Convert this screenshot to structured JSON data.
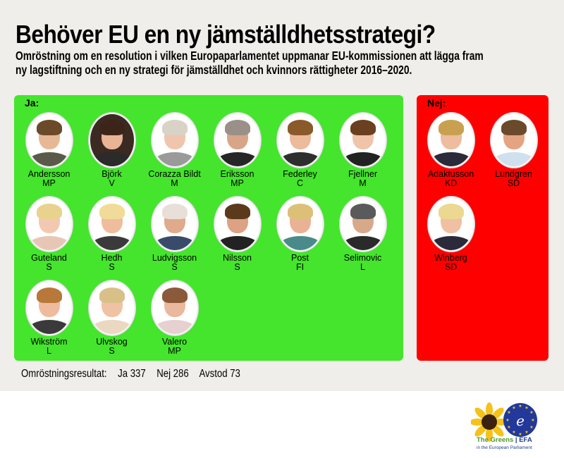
{
  "header": {
    "title": "Behöver EU en ny jämställdhetsstrategi?",
    "subtitle_line1": "Omröstning om en resolution i vilken Europaparlamentet uppmanar EU-kommissionen att lägga fram",
    "subtitle_line2": "ny lagstiftning och en ny strategi för jämställdhet och kvinnors rättigheter 2016–2020."
  },
  "colors": {
    "yes_panel": "#44e52c",
    "no_panel": "#ff0000",
    "background": "#f0eeea"
  },
  "yes": {
    "label": "Ja:",
    "meps": [
      {
        "name": "Andersson",
        "party": "MP",
        "icon": "portrait-photo"
      },
      {
        "name": "Björk",
        "party": "V",
        "icon": "portrait-photo"
      },
      {
        "name": "Corazza Bildt",
        "party": "M",
        "icon": "portrait-photo"
      },
      {
        "name": "Eriksson",
        "party": "MP",
        "icon": "portrait-photo"
      },
      {
        "name": "Federley",
        "party": "C",
        "icon": "portrait-photo"
      },
      {
        "name": "Fjellner",
        "party": "M",
        "icon": "portrait-photo"
      },
      {
        "name": "Guteland",
        "party": "S",
        "icon": "portrait-photo"
      },
      {
        "name": "Hedh",
        "party": "S",
        "icon": "portrait-photo"
      },
      {
        "name": "Ludvigsson",
        "party": "S",
        "icon": "portrait-photo"
      },
      {
        "name": "Nilsson",
        "party": "S",
        "icon": "portrait-photo"
      },
      {
        "name": "Post",
        "party": "FI",
        "icon": "portrait-photo"
      },
      {
        "name": "Selimovic",
        "party": "L",
        "icon": "portrait-photo"
      },
      {
        "name": "Wikström",
        "party": "L",
        "icon": "portrait-photo"
      },
      {
        "name": "Ulvskog",
        "party": "S",
        "icon": "portrait-photo"
      },
      {
        "name": "Valero",
        "party": "MP",
        "icon": "portrait-photo"
      }
    ]
  },
  "no": {
    "label": "Nej:",
    "meps": [
      {
        "name": "Adaktusson",
        "party": "KD",
        "icon": "portrait-photo"
      },
      {
        "name": "Lundgren",
        "party": "SD",
        "icon": "portrait-photo"
      },
      {
        "name": "Winberg",
        "party": "SD",
        "icon": "portrait-photo"
      }
    ]
  },
  "results": {
    "label": "Omröstningsresultat:",
    "yes": "Ja 337",
    "no": "Nej 286",
    "abstain": "Avstod 73"
  },
  "logo": {
    "icon": "sunflower-eu-stars-logo",
    "name_part1": "The Greens",
    "separator": " | ",
    "name_part2": "EFA",
    "tagline": "in the European Parliament"
  }
}
